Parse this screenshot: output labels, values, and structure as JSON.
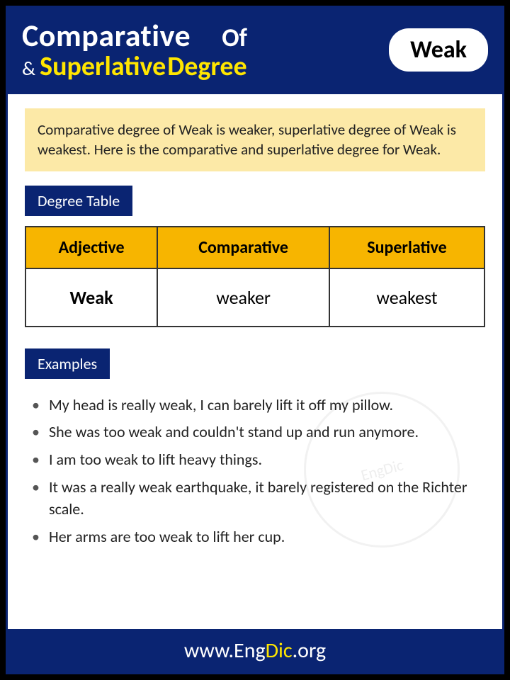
{
  "header": {
    "comparative": "Comparative",
    "of": "Of",
    "amp": "&",
    "superlative": "Superlative",
    "degree": "Degree",
    "word": "Weak"
  },
  "intro": "Comparative degree of Weak is weaker, superlative degree of Weak is weakest. Here is the comparative and superlative degree for Weak.",
  "sections": {
    "degree_table": "Degree Table",
    "examples": "Examples"
  },
  "table": {
    "columns": [
      "Adjective",
      "Comparative",
      "Superlative"
    ],
    "rows": [
      {
        "adjective": "Weak",
        "comparative": "weaker",
        "superlative": "weakest"
      }
    ],
    "header_bg": "#f7b500",
    "border_color": "#333333",
    "cell_bg": "#ffffff"
  },
  "examples": [
    "My head is really weak, I can barely lift it off my pillow.",
    "She was too weak and couldn't stand up and run anymore.",
    "I am too weak to lift heavy things.",
    "It was a really weak earthquake, it barely registered on the Richter scale.",
    "Her arms are too weak to lift her cup."
  ],
  "footer": {
    "prefix": "www.",
    "eng": "Eng",
    "dic": "Dic",
    "suffix": ".org"
  },
  "watermark": "EngDic",
  "colors": {
    "primary": "#0a2472",
    "accent": "#ffe600",
    "intro_bg": "#fce9a7",
    "table_header": "#f7b500"
  }
}
